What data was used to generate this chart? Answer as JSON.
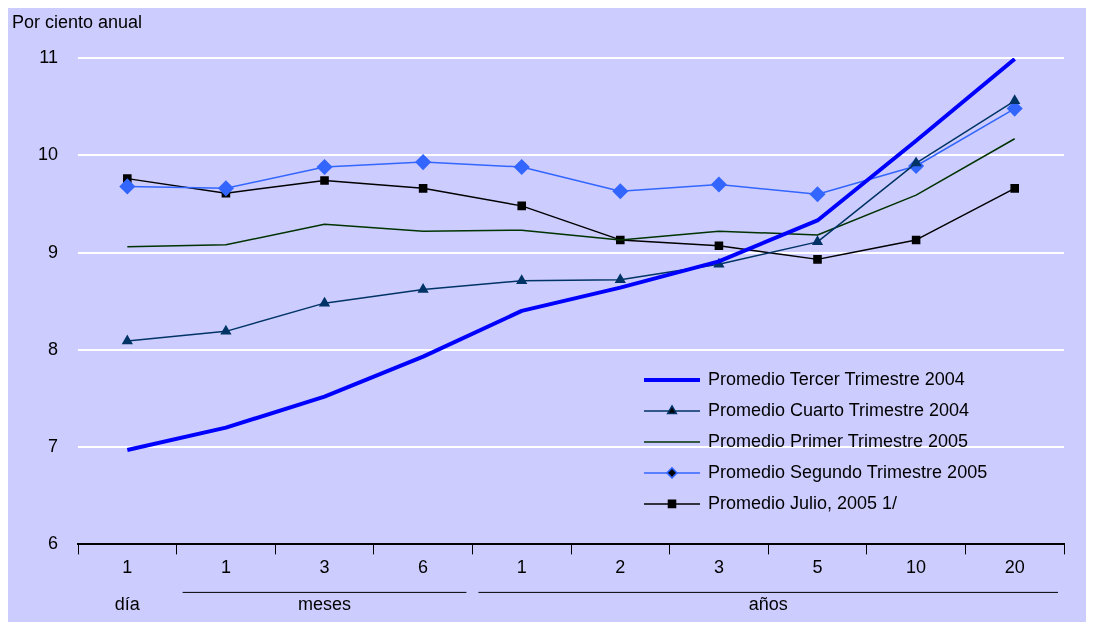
{
  "chart_data": {
    "type": "line",
    "ylabel": "Por ciento anual",
    "categories": [
      "1",
      "1",
      "3",
      "6",
      "1",
      "2",
      "3",
      "5",
      "10",
      "20"
    ],
    "series": [
      {
        "name": "Promedio Tercer Trimestre 2004",
        "color": "#0000ff",
        "marker": "none",
        "values": [
          6.97,
          7.2,
          7.52,
          7.93,
          8.4,
          8.64,
          8.91,
          9.33,
          10.15,
          10.99
        ]
      },
      {
        "name": "Promedio Cuarto Trimestre 2004",
        "color": "#003366",
        "marker": "triangle",
        "values": [
          8.09,
          8.19,
          8.48,
          8.62,
          8.71,
          8.72,
          8.88,
          9.11,
          9.92,
          10.56
        ]
      },
      {
        "name": "Promedio Primer Trimestre 2005",
        "color": "#003300",
        "marker": "none",
        "values": [
          9.06,
          9.08,
          9.29,
          9.22,
          9.23,
          9.13,
          9.22,
          9.18,
          9.59,
          10.17
        ]
      },
      {
        "name": "Promedio Segundo Trimestre 2005",
        "color": "#3366ff",
        "marker": "diamond",
        "values": [
          9.68,
          9.66,
          9.88,
          9.93,
          9.88,
          9.63,
          9.7,
          9.6,
          9.89,
          10.48
        ]
      },
      {
        "name": "Promedio Julio, 2005 1/",
        "color": "#000000",
        "marker": "square",
        "values": [
          9.76,
          9.61,
          9.74,
          9.66,
          9.48,
          9.13,
          9.07,
          8.93,
          9.13,
          9.66
        ]
      }
    ],
    "annotations": [
      "día",
      "meses",
      "años"
    ],
    "ylim": [
      6,
      11
    ],
    "yticks": [
      6,
      7,
      8,
      9,
      10,
      11
    ],
    "grid": "y",
    "legend": "bottom right"
  }
}
